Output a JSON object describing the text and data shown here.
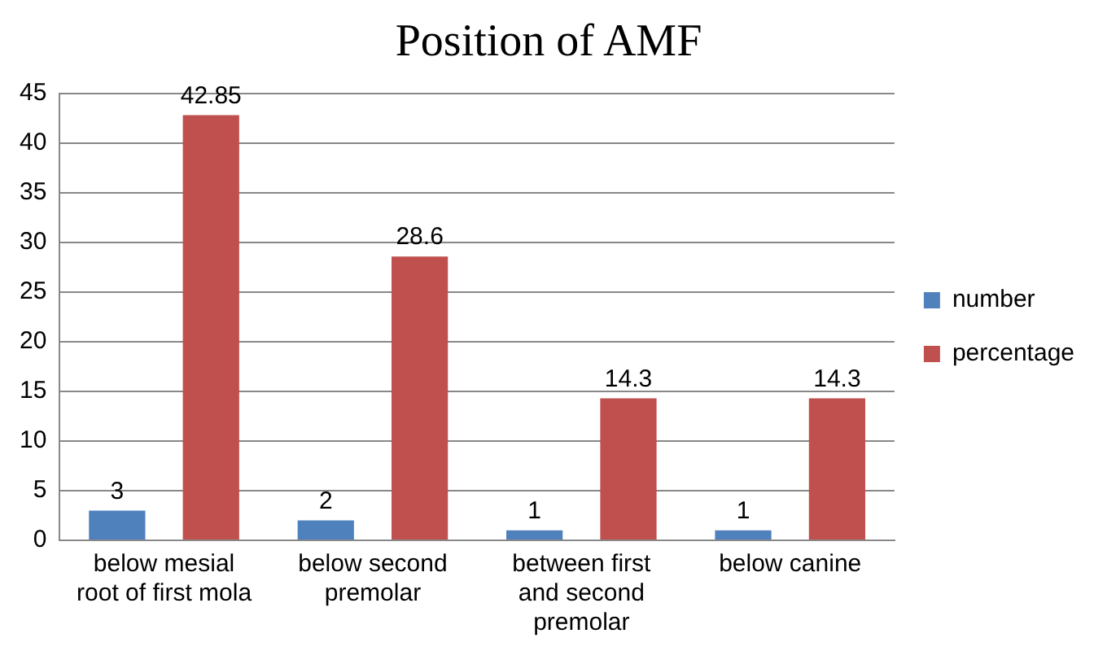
{
  "chart_data": {
    "type": "bar",
    "title": "Position of AMF",
    "categories": [
      "below mesial root of first mola",
      "below second premolar",
      "between first and second premolar",
      "below canine"
    ],
    "series": [
      {
        "name": "number",
        "color": "#4f81bd",
        "values": [
          3,
          2,
          1,
          1
        ]
      },
      {
        "name": "percentage",
        "color": "#c0504d",
        "values": [
          42.85,
          28.6,
          14.3,
          14.3
        ]
      }
    ],
    "ylim": [
      0,
      45
    ],
    "yticks": [
      0,
      5,
      10,
      15,
      20,
      25,
      30,
      35,
      40,
      45
    ],
    "grid": "y",
    "legend": "right",
    "data_labels": true
  }
}
